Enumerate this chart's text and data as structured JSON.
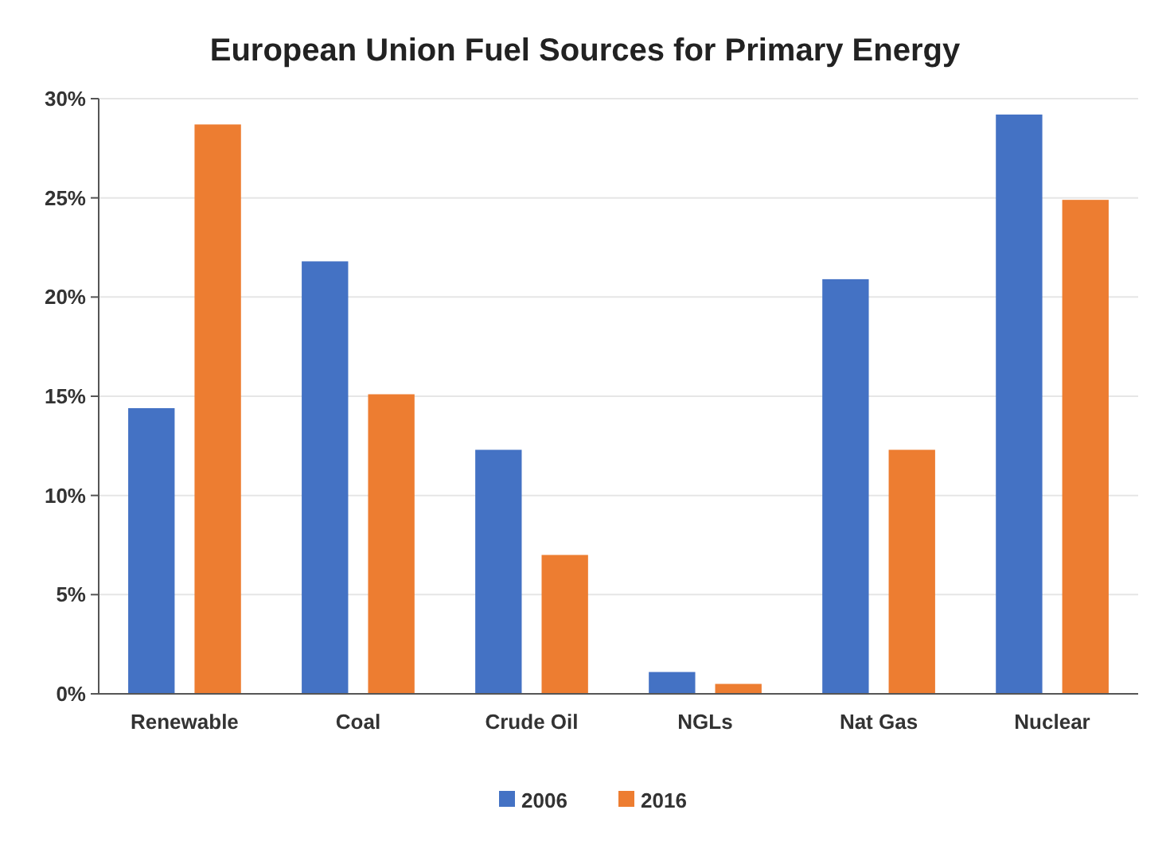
{
  "chart_data": {
    "type": "bar",
    "title": "European Union Fuel Sources for Primary Energy",
    "categories": [
      "Renewable",
      "Coal",
      "Crude Oil",
      "NGLs",
      "Nat Gas",
      "Nuclear"
    ],
    "series": [
      {
        "name": "2006",
        "color": "#4472c4",
        "values": [
          14.4,
          21.8,
          12.3,
          1.1,
          20.9,
          29.2
        ]
      },
      {
        "name": "2016",
        "color": "#ed7d31",
        "values": [
          28.7,
          15.1,
          7.0,
          0.5,
          12.3,
          24.9
        ]
      }
    ],
    "ylim": [
      0,
      30
    ],
    "yticks": [
      {
        "value": 0,
        "label": "0%"
      },
      {
        "value": 5,
        "label": "5%"
      },
      {
        "value": 10,
        "label": "10%"
      },
      {
        "value": 15,
        "label": "15%"
      },
      {
        "value": 20,
        "label": "20%"
      },
      {
        "value": 25,
        "label": "25%"
      },
      {
        "value": 30,
        "label": "30%"
      }
    ],
    "grid": "y",
    "legend": "bottom"
  }
}
